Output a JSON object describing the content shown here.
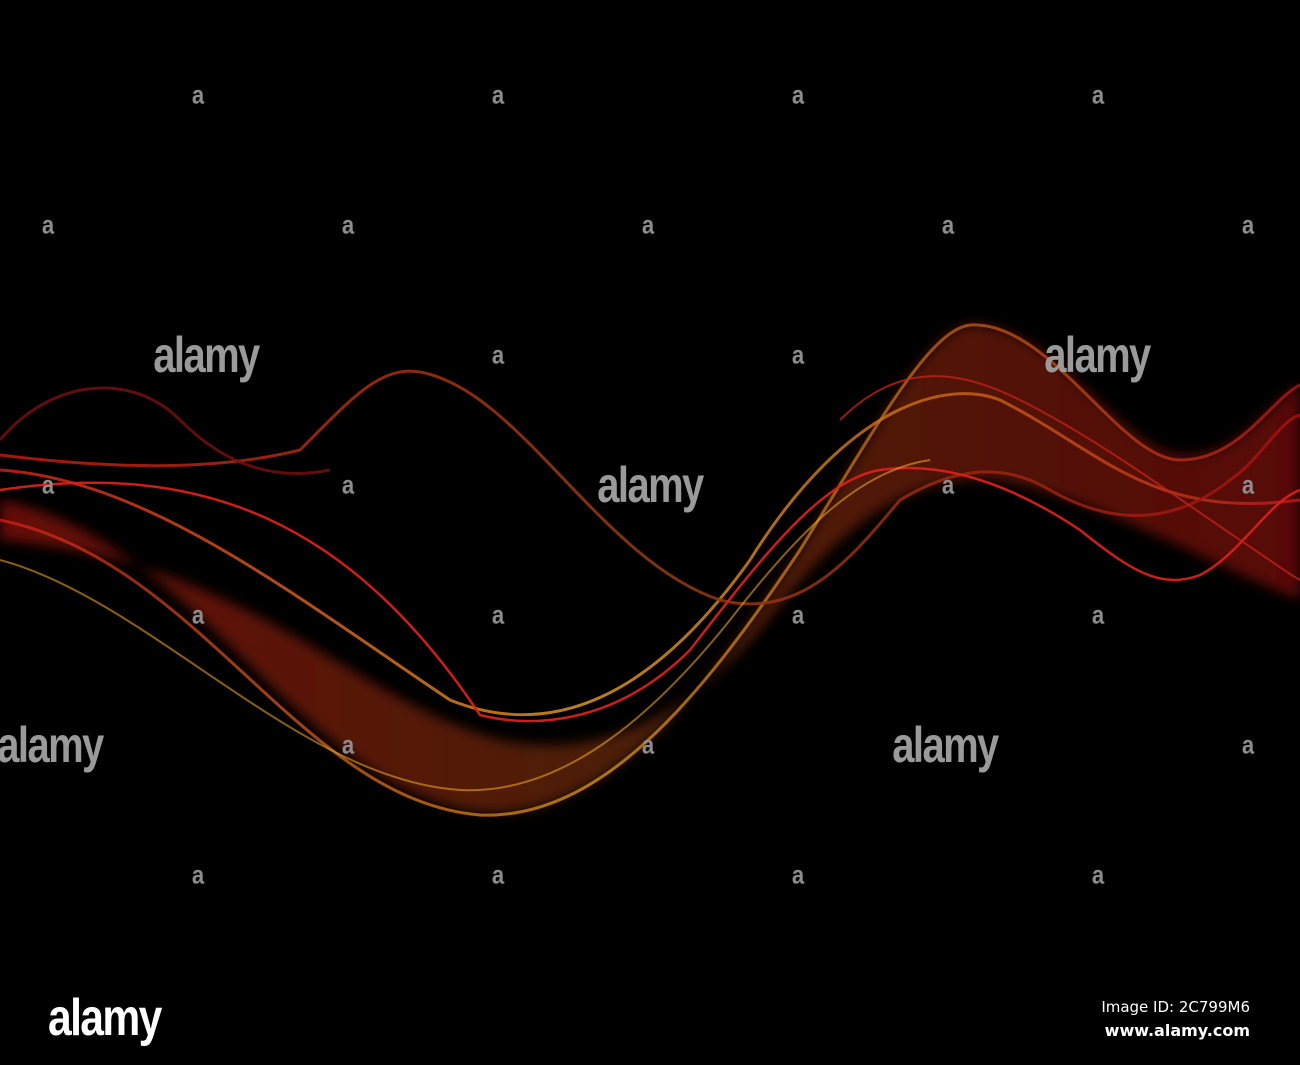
{
  "watermark": {
    "logo_text": "alamy",
    "small_mark": "a"
  },
  "footer": {
    "logo": "alamy",
    "image_id": "Image ID: 2C799M6",
    "site": "www.alamy.com"
  },
  "colors": {
    "background": "#000000",
    "red": "#d8201a",
    "orange": "#e8a020",
    "watermark": "#8c8c8c"
  }
}
